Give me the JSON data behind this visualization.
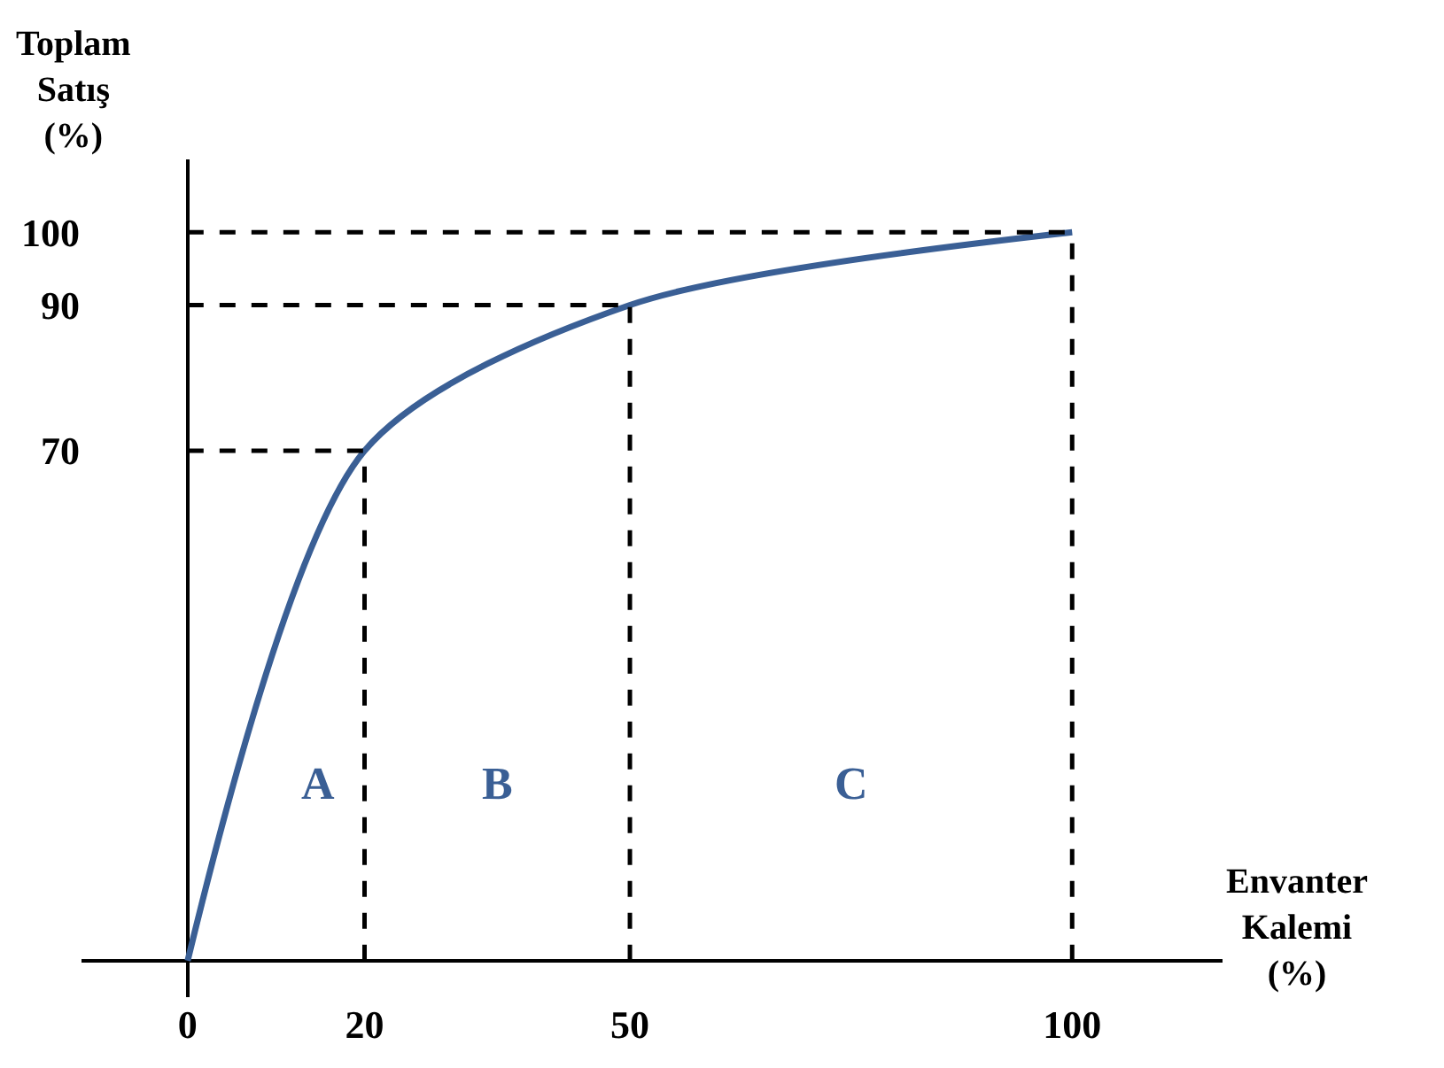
{
  "chart_data": {
    "type": "line",
    "xlabel": "Envanter\nKalemi\n(%)",
    "ylabel": "Toplam\nSatış\n(%)",
    "x": [
      0,
      20,
      50,
      100
    ],
    "series": [
      {
        "color": "#3a5f95",
        "values": [
          0,
          70,
          90,
          100
        ]
      }
    ],
    "xlim": [
      -12,
      117
    ],
    "ylim": [
      -5,
      110
    ],
    "xticks": [
      0,
      20,
      50,
      100
    ],
    "yticks": [
      70,
      90,
      100
    ],
    "marker": "none",
    "line_style": "solid",
    "ref_lines": [
      {
        "axis": "x",
        "value": 20,
        "color": "#000000",
        "line_style": "dashed"
      },
      {
        "axis": "x",
        "value": 50,
        "color": "#000000",
        "line_style": "dashed"
      },
      {
        "axis": "x",
        "value": 100,
        "color": "#000000",
        "line_style": "dashed"
      },
      {
        "axis": "y",
        "value": 70,
        "color": "#000000",
        "line_style": "dashed"
      },
      {
        "axis": "y",
        "value": 90,
        "color": "#000000",
        "line_style": "dashed"
      },
      {
        "axis": "y",
        "value": 100,
        "color": "#000000",
        "line_style": "dashed"
      }
    ],
    "annotations": [
      "A",
      "B",
      "C"
    ]
  }
}
